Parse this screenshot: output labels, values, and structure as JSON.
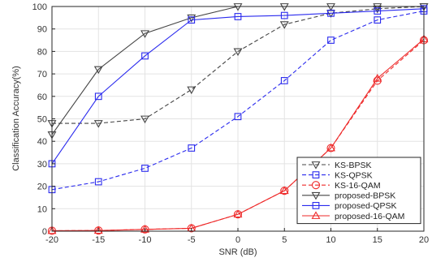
{
  "chart_data": {
    "type": "line",
    "xlabel": "SNR (dB)",
    "ylabel": "Classification Accuracy(%)",
    "xlim": [
      -20,
      20
    ],
    "ylim": [
      0,
      100
    ],
    "xticks": [
      -20,
      -15,
      -10,
      -5,
      0,
      5,
      10,
      15,
      20
    ],
    "yticks": [
      0,
      10,
      20,
      30,
      40,
      50,
      60,
      70,
      80,
      90,
      100
    ],
    "x": [
      -20,
      -15,
      -10,
      -5,
      0,
      5,
      10,
      15,
      20
    ],
    "grid": true,
    "legend_position": "bottom-right",
    "series": [
      {
        "name": "KS-BPSK",
        "color": "#444444",
        "dash": true,
        "marker": "triangle-down",
        "values": [
          48,
          48,
          50,
          63,
          80,
          92,
          97,
          99,
          100
        ]
      },
      {
        "name": "KS-QPSK",
        "color": "#2a2aee",
        "dash": true,
        "marker": "square",
        "values": [
          18.5,
          22,
          28,
          37,
          51,
          67,
          85,
          94,
          98
        ]
      },
      {
        "name": "KS-16-QAM",
        "color": "#ee2a2a",
        "dash": true,
        "marker": "circle",
        "values": [
          0.2,
          0.3,
          0.8,
          1.3,
          7.5,
          18,
          37,
          67,
          85
        ]
      },
      {
        "name": "proposed-BPSK",
        "color": "#444444",
        "dash": false,
        "marker": "triangle-down",
        "values": [
          43,
          72,
          88,
          95,
          100,
          100,
          100,
          100,
          100
        ]
      },
      {
        "name": "proposed-QPSK",
        "color": "#2a2aee",
        "dash": false,
        "marker": "square",
        "values": [
          30,
          60,
          78,
          94,
          95.5,
          96,
          97,
          98,
          99
        ]
      },
      {
        "name": "proposed-16-QAM",
        "color": "#ee2a2a",
        "dash": false,
        "marker": "triangle-up",
        "values": [
          0.2,
          0.3,
          0.8,
          1.3,
          7.5,
          18,
          37,
          68,
          85.5
        ]
      }
    ]
  }
}
